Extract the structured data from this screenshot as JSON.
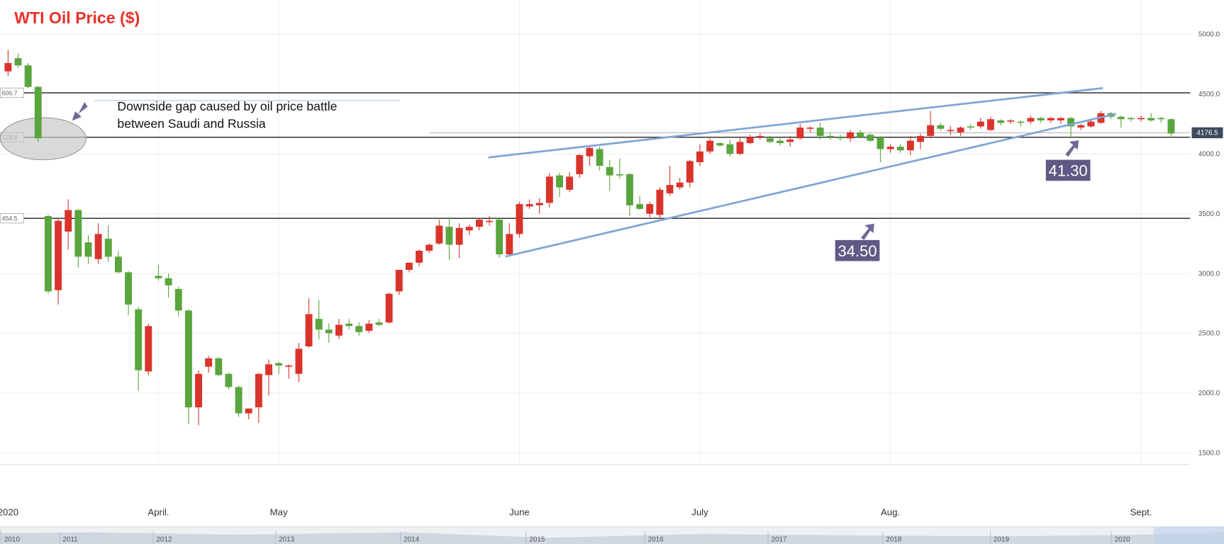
{
  "chart_data": {
    "type": "candlestick",
    "title": "WTI Oil Price ($)",
    "up_color": "#d9342b",
    "down_color": "#5aa53e",
    "categories": [
      "2020",
      null,
      null,
      null,
      null,
      null,
      null,
      null,
      null,
      null,
      null,
      null,
      null,
      null,
      null,
      "April.",
      null,
      null,
      null,
      null,
      null,
      null,
      null,
      null,
      null,
      null,
      null,
      "May",
      null,
      null,
      null,
      null,
      null,
      null,
      null,
      null,
      null,
      null,
      null,
      null,
      null,
      null,
      null,
      null,
      null,
      null,
      null,
      null,
      null,
      null,
      null,
      "June",
      null,
      null,
      null,
      null,
      null,
      null,
      null,
      null,
      null,
      null,
      null,
      null,
      null,
      null,
      null,
      null,
      null,
      "July",
      null,
      null,
      null,
      null,
      null,
      null,
      null,
      null,
      null,
      null,
      null,
      null,
      null,
      null,
      null,
      null,
      null,
      null,
      "Aug.",
      null,
      null,
      null,
      null,
      null,
      null,
      null,
      null,
      null,
      null,
      null,
      null,
      null,
      null,
      null,
      null,
      null,
      null,
      null,
      null,
      null,
      null,
      null,
      null,
      "Sept.",
      null,
      null,
      null
    ],
    "open": [
      4690,
      4800,
      4740,
      4560,
      3480,
      2860,
      3350,
      3530,
      3260,
      3120,
      3290,
      3140,
      3010,
      2700,
      2180,
      2980,
      2960,
      2870,
      2690,
      1880,
      2220,
      2290,
      2160,
      2050,
      1830,
      1880,
      2150,
      2250,
      2220,
      2160,
      2390,
      2620,
      2530,
      2480,
      2580,
      2560,
      2520,
      2590,
      2590,
      2850,
      3030,
      3090,
      3190,
      3250,
      3390,
      3240,
      3360,
      3390,
      3430,
      3450,
      3160,
      3330,
      3560,
      3570,
      3590,
      3820,
      3700,
      3830,
      3980,
      4040,
      3890,
      3830,
      3830,
      3580,
      3500,
      3490,
      3670,
      3720,
      3760,
      3930,
      4020,
      4090,
      4080,
      4000,
      4090,
      4140,
      4130,
      4110,
      4100,
      4130,
      4210,
      4220,
      4150,
      4140,
      4130,
      4180,
      4160,
      4140,
      4040,
      4060,
      4030,
      4100,
      4150,
      4240,
      4190,
      4180,
      4230,
      4230,
      4200,
      4280,
      4270,
      4270,
      4270,
      4300,
      4280,
      4280,
      4300,
      4220,
      4230,
      4260,
      4340,
      4310,
      4300,
      4290,
      4300,
      4300,
      4290
    ],
    "high": [
      4870,
      4840,
      4760,
      4570,
      3490,
      3460,
      3620,
      3540,
      3320,
      3420,
      3400,
      3190,
      3020,
      2720,
      2580,
      3070,
      3000,
      2890,
      2700,
      2190,
      2310,
      2300,
      2170,
      2060,
      1870,
      2170,
      2280,
      2260,
      2240,
      2420,
      2790,
      2780,
      2580,
      2620,
      2620,
      2590,
      2610,
      2620,
      2840,
      3030,
      3090,
      3200,
      3250,
      3450,
      3470,
      3420,
      3410,
      3460,
      3480,
      3460,
      3420,
      3600,
      3620,
      3630,
      3840,
      3840,
      3850,
      4000,
      4070,
      4060,
      3950,
      3960,
      3840,
      3650,
      3600,
      3720,
      3900,
      3800,
      3950,
      4080,
      4130,
      4100,
      4120,
      4130,
      4160,
      4170,
      4150,
      4140,
      4150,
      4250,
      4230,
      4260,
      4180,
      4160,
      4200,
      4200,
      4170,
      4150,
      4080,
      4080,
      4150,
      4170,
      4360,
      4260,
      4230,
      4230,
      4250,
      4300,
      4310,
      4290,
      4290,
      4280,
      4320,
      4310,
      4310,
      4310,
      4310,
      4250,
      4280,
      4360,
      4350,
      4320,
      4310,
      4320,
      4340,
      4310,
      4300
    ],
    "low": [
      4650,
      4720,
      4550,
      4100,
      2830,
      2740,
      3200,
      3050,
      3080,
      3080,
      3100,
      3000,
      2650,
      2020,
      2150,
      2940,
      2800,
      2640,
      1740,
      1730,
      2170,
      2140,
      2030,
      1800,
      1780,
      1750,
      1980,
      2160,
      2120,
      2090,
      2380,
      2450,
      2420,
      2450,
      2530,
      2480,
      2500,
      2560,
      2580,
      2820,
      3010,
      3060,
      3170,
      3240,
      3110,
      3130,
      3320,
      3360,
      3400,
      3130,
      3140,
      3300,
      3540,
      3500,
      3550,
      3640,
      3680,
      3800,
      3900,
      3860,
      3690,
      3790,
      3480,
      3530,
      3470,
      3460,
      3650,
      3700,
      3720,
      3900,
      4000,
      4060,
      3980,
      3990,
      4080,
      4120,
      4090,
      4070,
      4060,
      4120,
      4180,
      4120,
      4120,
      4110,
      4100,
      4130,
      4100,
      3930,
      4010,
      4010,
      3990,
      4040,
      4130,
      4190,
      4160,
      4150,
      4200,
      4210,
      4190,
      4240,
      4250,
      4230,
      4250,
      4260,
      4260,
      4250,
      4130,
      4200,
      4220,
      4250,
      4290,
      4220,
      4270,
      4270,
      4270,
      4260,
      4140
    ],
    "close": [
      4760,
      4740,
      4560,
      4130,
      2850,
      3440,
      3530,
      3140,
      3140,
      3330,
      3140,
      3010,
      2740,
      2190,
      2560,
      2960,
      2900,
      2690,
      1880,
      2160,
      2290,
      2150,
      2050,
      1830,
      1870,
      2160,
      2240,
      2230,
      2230,
      2370,
      2660,
      2530,
      2500,
      2570,
      2560,
      2510,
      2580,
      2570,
      2830,
      3030,
      3090,
      3190,
      3240,
      3400,
      3240,
      3380,
      3390,
      3450,
      3440,
      3160,
      3330,
      3580,
      3580,
      3590,
      3810,
      3720,
      3810,
      3990,
      4050,
      3900,
      3820,
      3820,
      3570,
      3540,
      3580,
      3700,
      3740,
      3760,
      3940,
      4020,
      4110,
      4070,
      4000,
      4100,
      4140,
      4150,
      4100,
      4090,
      4120,
      4220,
      4220,
      4150,
      4140,
      4130,
      4180,
      4140,
      4110,
      4040,
      4060,
      4030,
      4110,
      4150,
      4240,
      4210,
      4200,
      4220,
      4220,
      4270,
      4290,
      4260,
      4280,
      4260,
      4300,
      4280,
      4300,
      4300,
      4230,
      4240,
      4270,
      4340,
      4310,
      4290,
      4290,
      4300,
      4280,
      4290,
      4170
    ],
    "ylim": [
      1402,
      5287
    ],
    "yticks": [
      {
        "value": 5000,
        "label": "5000.0"
      },
      {
        "value": 4500,
        "label": "4500.0"
      },
      {
        "value": 4000,
        "label": "4000.0"
      },
      {
        "value": 3500,
        "label": "3500.0"
      },
      {
        "value": 3000,
        "label": "3000.0"
      },
      {
        "value": 2500,
        "label": "2500.0"
      },
      {
        "value": 2000,
        "label": "2000.0"
      },
      {
        "value": 1500,
        "label": "1500.0"
      }
    ],
    "grid": true,
    "levels": [
      4511,
      4139,
      3461
    ],
    "level_tags": [
      "606.7",
      "128.4",
      "454.5"
    ],
    "last_price": 4176.5,
    "trendlines": [
      {
        "from": [
          47.9,
          3970
        ],
        "to": [
          109.2,
          4550
        ]
      },
      {
        "from": [
          49.6,
          3142
        ],
        "to": [
          110.5,
          4335
        ]
      }
    ],
    "gap_note": [
      "Downside gap caused by oil price battle",
      "between Saudi and Russia"
    ],
    "callouts": [
      "34.50",
      "41.30"
    ],
    "navigator_labels": [
      "2010",
      "2011",
      "2012",
      "2013",
      "2014",
      "2015",
      "2016",
      "2017",
      "2018",
      "2019",
      "2020"
    ]
  }
}
